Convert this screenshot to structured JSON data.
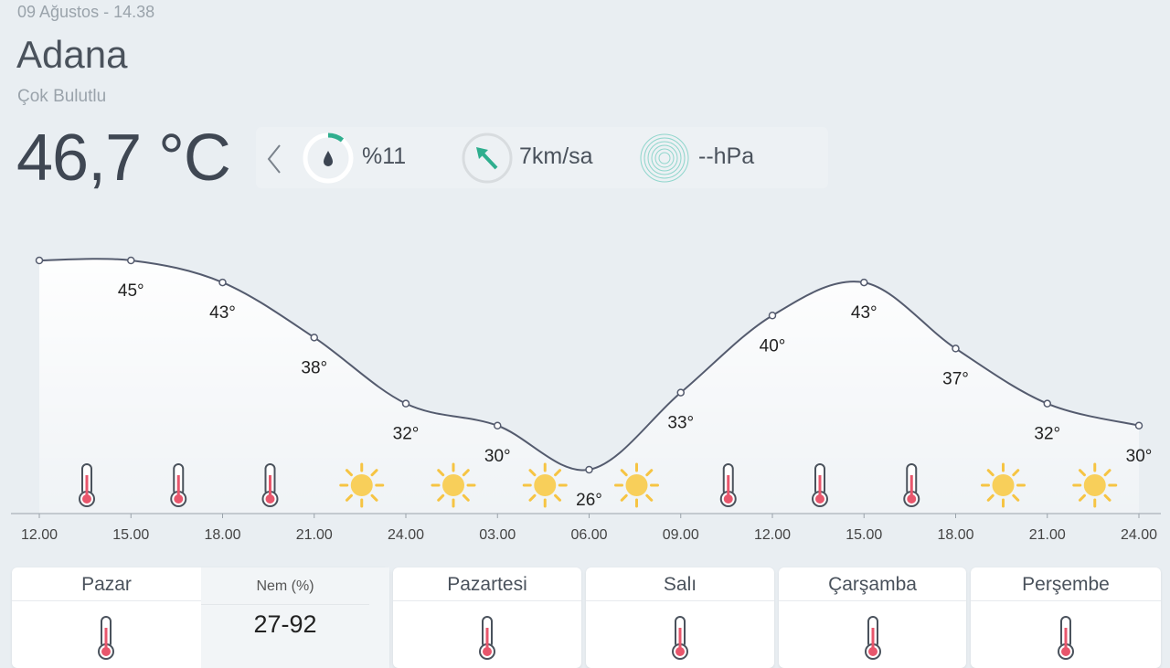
{
  "header": {
    "date": "09 Ağustos - 14.38",
    "city": "Adana",
    "condition": "Çok Bulutlu",
    "temperature": "46,7 °C"
  },
  "info": {
    "prev_icon": "chevron-left-icon",
    "humidity": "%11",
    "humidity_fraction": 0.11,
    "wind": "7km/sa",
    "wind_direction": "north-west",
    "pressure": "--hPa",
    "accent": "#2fae8e"
  },
  "chart_data": {
    "type": "line",
    "x": [
      "12.00",
      "15.00",
      "18.00",
      "21.00",
      "24.00",
      "03.00",
      "06.00",
      "09.00",
      "12.00",
      "15.00",
      "18.00",
      "21.00",
      "24.00"
    ],
    "values": [
      45,
      45,
      43,
      38,
      32,
      30,
      26,
      33,
      40,
      43,
      37,
      32,
      30
    ],
    "labels": [
      "",
      "45°",
      "43°",
      "38°",
      "32°",
      "30°",
      "26°",
      "33°",
      "40°",
      "43°",
      "37°",
      "32°",
      "30°"
    ],
    "icons": [
      "thermometer",
      "thermometer",
      "thermometer",
      "sun",
      "sun",
      "sun",
      "sun",
      "thermometer",
      "thermometer",
      "thermometer",
      "sun",
      "sun"
    ],
    "line_color": "#545b6e"
  },
  "days": [
    {
      "name": "Pazar"
    },
    {
      "name": "Pazartesi"
    },
    {
      "name": "Salı"
    },
    {
      "name": "Çarşamba"
    },
    {
      "name": "Perşembe"
    }
  ],
  "humidity_panel": {
    "title": "Nem (%)",
    "range": "27-92"
  }
}
